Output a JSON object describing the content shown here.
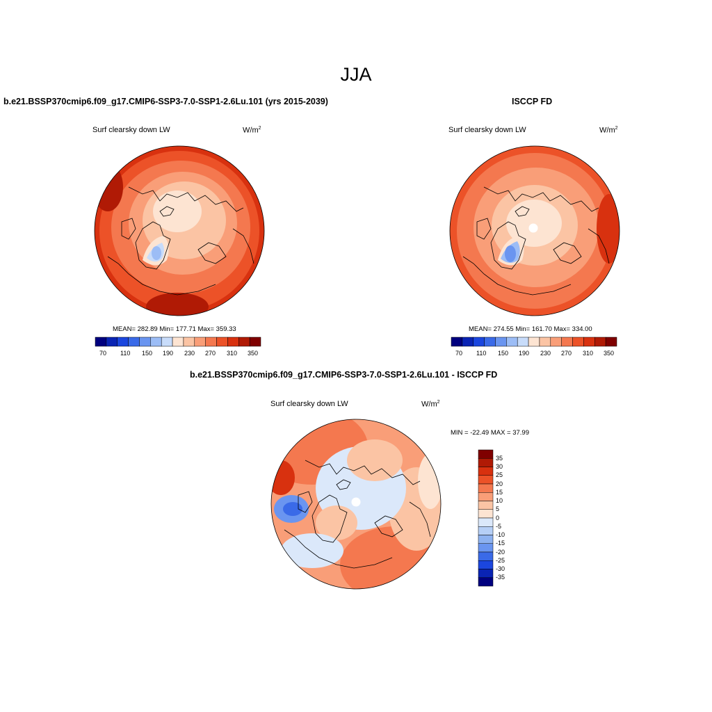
{
  "page": {
    "season_title": "JJA"
  },
  "panels": [
    {
      "title": "b.e21.BSSP370cmip6.f09_g17.CMIP6-SSP3-7.0-SSP1-2.6Lu.101 (yrs 2015-2039)",
      "variable": "Surf clearsky down LW",
      "units_base": "W/m",
      "units_exp": "2",
      "stats": "MEAN= 282.89  Min= 177.71  Max= 359.33",
      "colorbar_ticks": [
        "70",
        "110",
        "150",
        "190",
        "230",
        "270",
        "310",
        "350"
      ]
    },
    {
      "title": "ISCCP FD",
      "variable": "Surf clearsky down LW",
      "units_base": "W/m",
      "units_exp": "2",
      "stats": "MEAN= 274.55  Min= 161.70  Max= 334.00",
      "colorbar_ticks": [
        "70",
        "110",
        "150",
        "190",
        "230",
        "270",
        "310",
        "350"
      ]
    },
    {
      "title": "b.e21.BSSP370cmip6.f09_g17.CMIP6-SSP3-7.0-SSP1-2.6Lu.101 - ISCCP FD",
      "variable": "Surf clearsky down LW",
      "units_base": "W/m",
      "units_exp": "2",
      "stats": "MIN = -22.49 MAX =  37.99",
      "colorbar_ticks": [
        "35",
        "30",
        "25",
        "20",
        "15",
        "10",
        "5",
        "0",
        "-5",
        "-10",
        "-15",
        "-20",
        "-25",
        "-30",
        "-35"
      ]
    }
  ],
  "colors": {
    "abs_scale": [
      "#00007f",
      "#0a24b4",
      "#1b46de",
      "#3a6ae8",
      "#6a95f0",
      "#9cbdf6",
      "#c8dcfa",
      "#fde4d2",
      "#fbc4a4",
      "#f99e78",
      "#f4784f",
      "#ec5228",
      "#d8310f",
      "#b01a05",
      "#7f0000"
    ],
    "diff_scale": [
      "#7f0000",
      "#b01a05",
      "#d8310f",
      "#ec5228",
      "#f4784f",
      "#f99e78",
      "#fbc4a4",
      "#fde4d2",
      "#dbe8fa",
      "#b6cff6",
      "#8eb2f0",
      "#6a95f0",
      "#3a6ae8",
      "#1b46de",
      "#0a24b4",
      "#00007f"
    ]
  }
}
